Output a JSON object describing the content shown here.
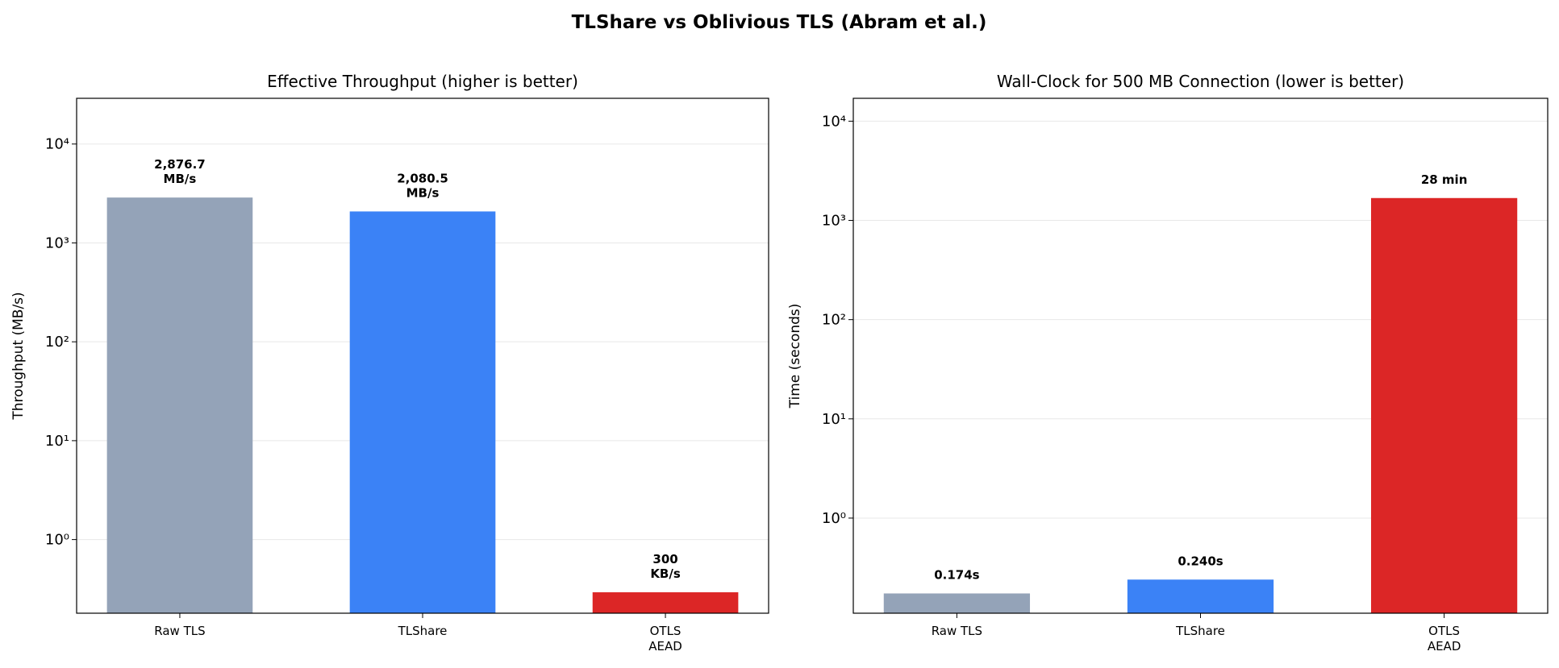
{
  "title": "TLShare vs Oblivious TLS (Abram et al.)",
  "chart_data": [
    {
      "type": "bar",
      "title": "Effective Throughput (higher is better)",
      "y_label": "Throughput (MB/s)",
      "categories": [
        "Raw TLS",
        "TLShare",
        "OTLS\nAEAD"
      ],
      "values": [
        2876.7,
        2080.5,
        0.293
      ],
      "value_labels": [
        "2,876.7\nMB/s",
        "2,080.5\nMB/s",
        "300\nKB/s"
      ],
      "colors": [
        "#94a3b8",
        "#3b82f6",
        "#dc2626"
      ],
      "log_scale": true,
      "grid": true,
      "ylim": [
        0.18,
        29000
      ],
      "yticks": [
        {
          "value": 1,
          "label": "10⁰"
        },
        {
          "value": 10,
          "label": "10¹"
        },
        {
          "value": 100,
          "label": "10²"
        },
        {
          "value": 1000,
          "label": "10³"
        },
        {
          "value": 10000,
          "label": "10⁴"
        }
      ]
    },
    {
      "type": "bar",
      "title": "Wall-Clock for 500 MB Connection (lower is better)",
      "y_label": "Time (seconds)",
      "categories": [
        "Raw TLS",
        "TLShare",
        "OTLS\nAEAD"
      ],
      "values": [
        0.174,
        0.24,
        1680
      ],
      "value_labels": [
        "0.174s",
        "0.240s",
        "28 min"
      ],
      "colors": [
        "#94a3b8",
        "#3b82f6",
        "#dc2626"
      ],
      "log_scale": true,
      "grid": true,
      "ylim": [
        0.11,
        17000
      ],
      "yticks": [
        {
          "value": 1,
          "label": "10⁰"
        },
        {
          "value": 10,
          "label": "10¹"
        },
        {
          "value": 100,
          "label": "10²"
        },
        {
          "value": 1000,
          "label": "10³"
        },
        {
          "value": 10000,
          "label": "10⁴"
        }
      ]
    }
  ]
}
